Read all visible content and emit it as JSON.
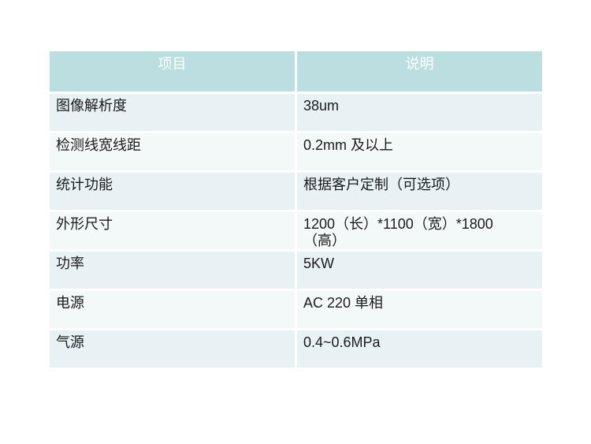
{
  "page": {
    "background": "#ffffff"
  },
  "table": {
    "headers": {
      "item": "项目",
      "description": "说明"
    },
    "rows": [
      {
        "item": "图像解析度",
        "description": "38um"
      },
      {
        "item": "检测线宽线距",
        "description": "0.2mm 及以上"
      },
      {
        "item": "统计功能",
        "description": "根据客户定制（可选项）"
      },
      {
        "item": "外形尺寸",
        "description": "1200（长）*1100（宽）*1800\n（高）"
      },
      {
        "item": "功率",
        "description": "5KW"
      },
      {
        "item": "电源",
        "description": "AC 220 单相"
      },
      {
        "item": "气源",
        "description": "0.4~0.6MPa"
      }
    ],
    "colors": {
      "header_bg": "#bbdee1",
      "header_text": "#ffffff",
      "row_odd_bg": "#e8f1f3",
      "row_even_bg": "#f3f8f9",
      "body_text": "#1b1b1b",
      "page_bg": "#ffffff"
    }
  }
}
